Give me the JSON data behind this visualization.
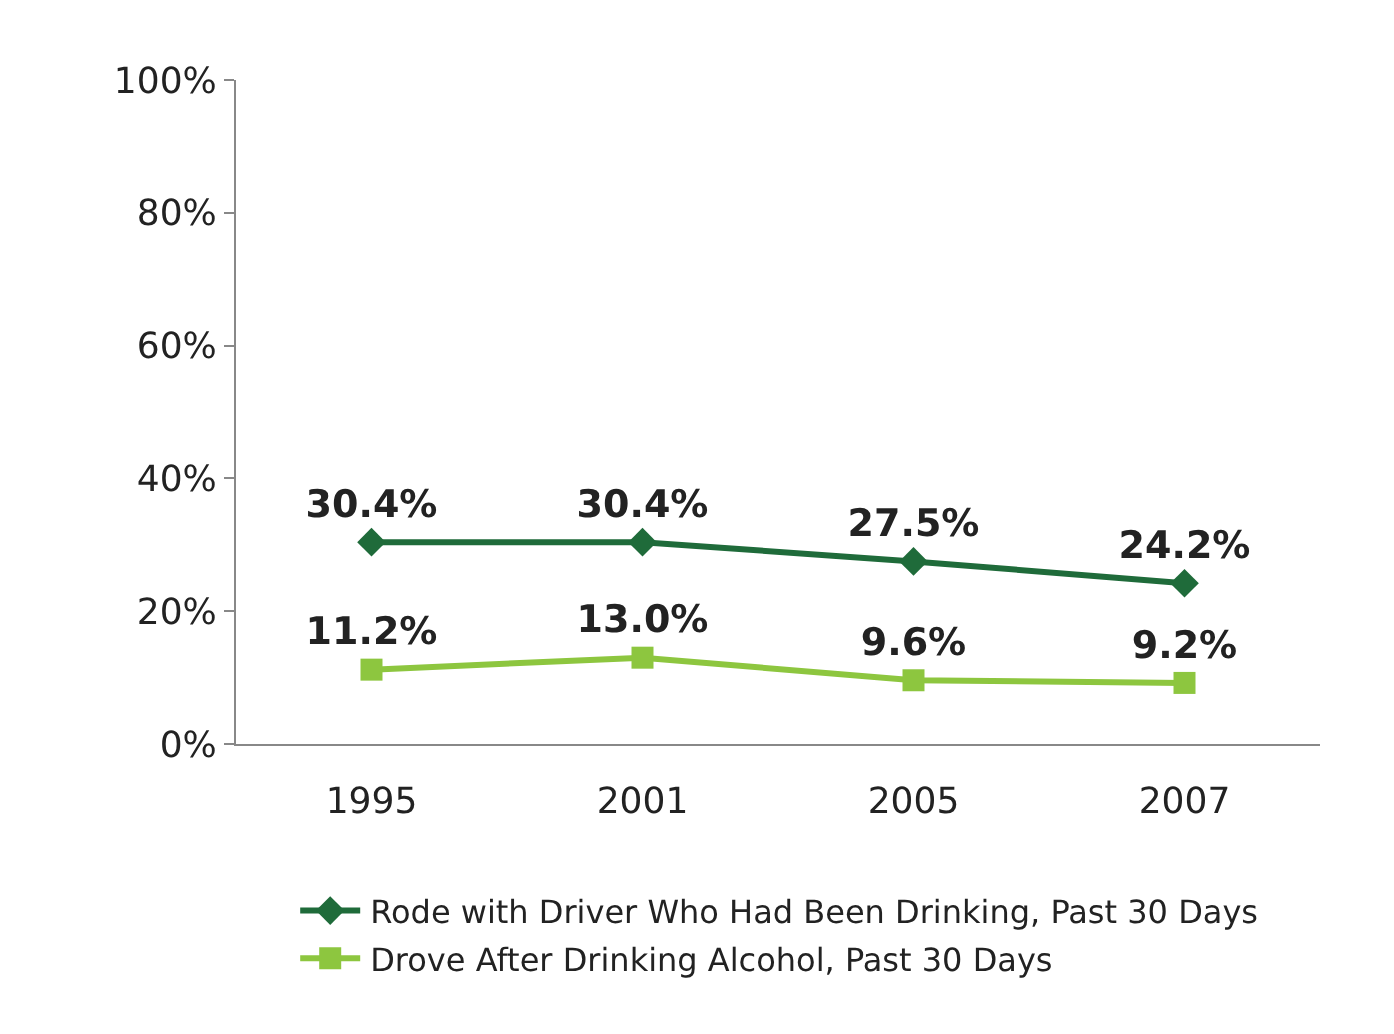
{
  "chart_data": {
    "type": "line",
    "categories": [
      "1995",
      "2001",
      "2005",
      "2007"
    ],
    "series": [
      {
        "name": "Rode with Driver Who Had Been Drinking, Past 30 Days",
        "color": "#1f6b3a",
        "marker": "diamond",
        "values": [
          30.4,
          30.4,
          27.5,
          24.2
        ],
        "value_labels": [
          "30.4%",
          "30.4%",
          "27.5%",
          "24.2%"
        ]
      },
      {
        "name": "Drove After Drinking Alcohol, Past 30 Days",
        "color": "#8dc63f",
        "marker": "square",
        "values": [
          11.2,
          13.0,
          9.6,
          9.2
        ],
        "value_labels": [
          "11.2%",
          "13.0%",
          "9.6%",
          "9.2%"
        ]
      }
    ],
    "ylim": [
      0,
      100
    ],
    "yticks": [
      {
        "value": 0,
        "label": "0%"
      },
      {
        "value": 20,
        "label": "20%"
      },
      {
        "value": 40,
        "label": "40%"
      },
      {
        "value": 60,
        "label": "60%"
      },
      {
        "value": 80,
        "label": "80%"
      },
      {
        "value": 100,
        "label": "100%"
      }
    ],
    "legend": "bottom",
    "line_style": "solid"
  }
}
